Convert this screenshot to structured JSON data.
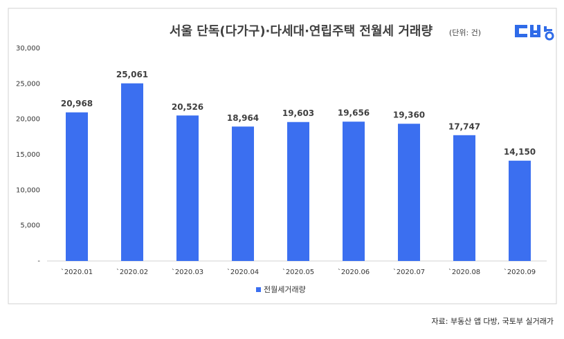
{
  "chart_data": {
    "type": "bar",
    "title": "서울 단독(다가구)·다세대·연립주택 전월세 거래량",
    "subtitle": "(단위: 건)",
    "categories": [
      "`2020.01",
      "`2020.02",
      "`2020.03",
      "`2020.04",
      "`2020.05",
      "`2020.06",
      "`2020.07",
      "`2020.08",
      "`2020.09"
    ],
    "series": [
      {
        "name": "전월세거래량",
        "color": "#3b6ff0",
        "values": [
          20968,
          25061,
          20526,
          18964,
          19603,
          19656,
          19360,
          17747,
          14150
        ],
        "value_labels": [
          "20,968",
          "25,061",
          "20,526",
          "18,964",
          "19,603",
          "19,656",
          "19,360",
          "17,747",
          "14,150"
        ]
      }
    ],
    "ylim": [
      0,
      30000
    ],
    "yticks": [
      {
        "value": 0,
        "label": "-"
      },
      {
        "value": 5000,
        "label": "5,000"
      },
      {
        "value": 10000,
        "label": "10,000"
      },
      {
        "value": 15000,
        "label": "15,000"
      },
      {
        "value": 20000,
        "label": "20,000"
      },
      {
        "value": 25000,
        "label": "25,000"
      },
      {
        "value": 30000,
        "label": "30,000"
      }
    ],
    "grid": false,
    "legend": "bottom",
    "source": "자료: 부동산 앱 다방, 국토부 실거래가"
  }
}
